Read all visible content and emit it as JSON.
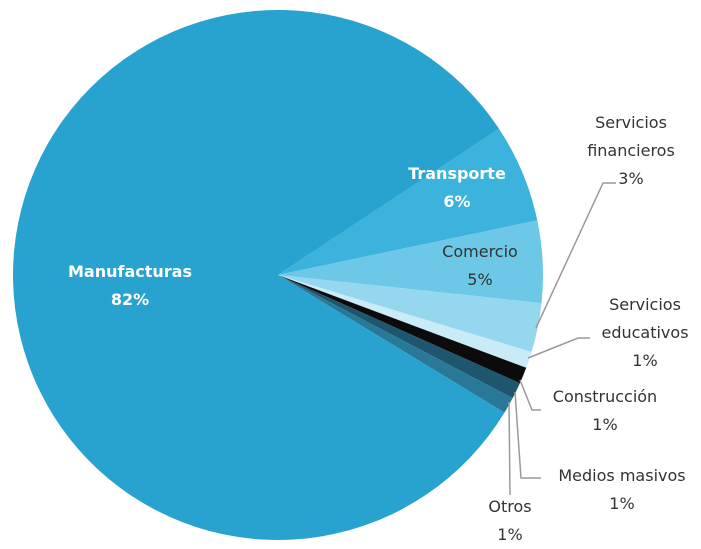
{
  "chart_data": {
    "type": "pie",
    "categories": [
      "Transporte",
      "Comercio",
      "Servicios financieros",
      "Servicios educativos",
      "Construcción",
      "Medios masivos",
      "Otros",
      "Manufacturas"
    ],
    "values": [
      6,
      5,
      3,
      1,
      1,
      1,
      1,
      82
    ],
    "value_labels": [
      "6%",
      "5%",
      "3%",
      "1%",
      "1%",
      "1%",
      "1%",
      "82%"
    ],
    "colors": [
      "#3bb3dc",
      "#6cc8e6",
      "#95d7ef",
      "#c8ebf7",
      "#0b0b0b",
      "#1d566e",
      "#2a7898",
      "#28a3cf"
    ]
  }
}
